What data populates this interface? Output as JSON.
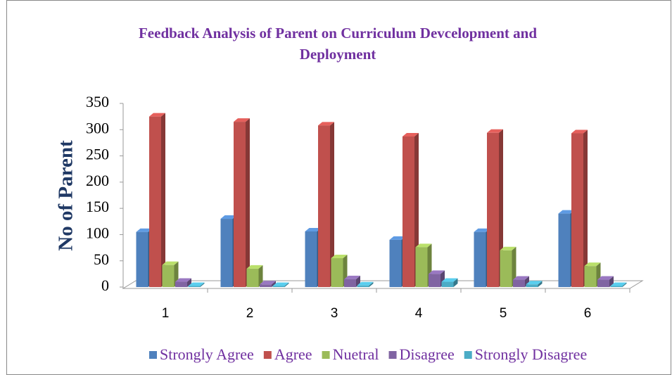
{
  "chart_data": {
    "type": "bar3d",
    "title": "Feedback Analysis of Parent on Curriculum Devcelopment and Deployment",
    "y_label": "No of Parent",
    "categories": [
      "1",
      "2",
      "3",
      "4",
      "5",
      "6"
    ],
    "series": [
      {
        "name": "Strongly Agree",
        "color": "#4f81bd",
        "values": [
          105,
          130,
          106,
          90,
          105,
          140
        ]
      },
      {
        "name": "Agree",
        "color": "#c0504d",
        "values": [
          325,
          315,
          308,
          287,
          294,
          293
        ]
      },
      {
        "name": "Nuetral",
        "color": "#9bbb59",
        "values": [
          42,
          35,
          55,
          76,
          70,
          40
        ]
      },
      {
        "name": "Disagree",
        "color": "#8064a2",
        "values": [
          10,
          5,
          15,
          25,
          14,
          14
        ]
      },
      {
        "name": "Strongly Disagree",
        "color": "#4bacc6",
        "values": [
          2,
          2,
          3,
          10,
          5,
          2
        ]
      }
    ],
    "ylim": [
      0,
      350
    ],
    "yticks": [
      0,
      50,
      100,
      150,
      200,
      250,
      300,
      350
    ],
    "legend": "bottom"
  }
}
